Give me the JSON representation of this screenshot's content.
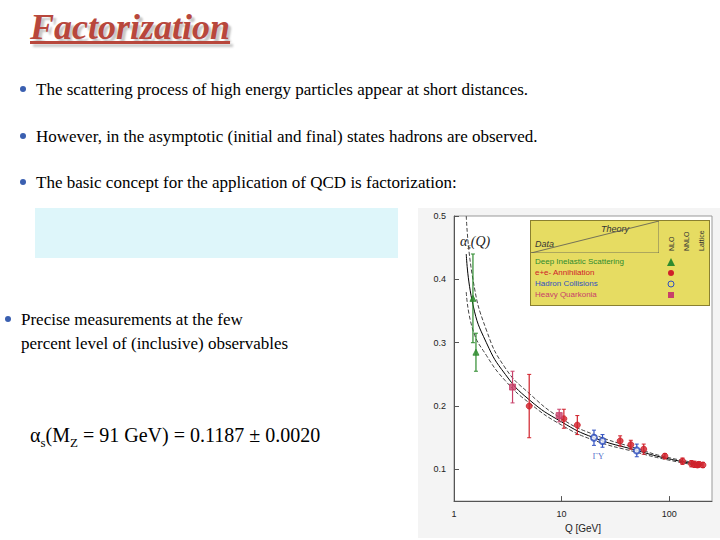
{
  "title": "Factorization",
  "bullets": [
    "The scattering process of high energy particles appear at short distances.",
    "However, in the asymptotic (initial and final) states hadrons are observed.",
    "The basic concept for the application of QCD is factorization:"
  ],
  "bullet_lower": [
    "Precise measurements at the few",
    "percent level of (inclusive) observables"
  ],
  "formula": [
    {
      "text": "α"
    },
    {
      "text": "s",
      "sub": true
    },
    {
      "text": "(M"
    },
    {
      "text": "Z",
      "sub": true
    },
    {
      "text": " = 91 GeV) = 0.1187 ± 0.0020"
    }
  ],
  "chart_data": {
    "type": "scatter",
    "ylabel": [
      {
        "text": "α"
      },
      {
        "text": "s",
        "sub": true
      },
      {
        "text": "(Q)"
      }
    ],
    "xlabel": "Q [GeV]",
    "log": "x",
    "xlim": [
      1,
      250
    ],
    "xticks": [
      1,
      10,
      100
    ],
    "ylim": [
      0.05,
      0.5
    ],
    "yticks": [
      0.1,
      0.2,
      0.3,
      0.4,
      0.5
    ],
    "legend_headers": {
      "theory": "Theory",
      "data": "Data"
    },
    "theory_columns": [
      "NLO",
      "NNLO",
      "Lattice"
    ],
    "series": [
      {
        "name": "Deep Inelastic Scattering",
        "color": "#2e8b2e",
        "marker": "triangle",
        "x": [
          1.5,
          1.6
        ],
        "values": [
          0.37,
          0.285
        ],
        "errors": [
          0.07,
          0.03
        ]
      },
      {
        "name": "e+e- Annihilation",
        "color": "#d0202a",
        "marker": "circle",
        "x": [
          5,
          10.5,
          14,
          35,
          44,
          58,
          91.2,
          133,
          161,
          172,
          183,
          189,
          206
        ],
        "values": [
          0.2,
          0.18,
          0.17,
          0.145,
          0.139,
          0.132,
          0.121,
          0.113,
          0.109,
          0.108,
          0.107,
          0.108,
          0.107
        ],
        "errors": [
          0.05,
          0.015,
          0.015,
          0.008,
          0.007,
          0.008,
          0.004,
          0.005,
          0.005,
          0.005,
          0.004,
          0.004,
          0.004
        ]
      },
      {
        "name": "Hadron Collisions",
        "color": "#3050c0",
        "marker": "emptyCircle",
        "x": [
          20,
          24,
          50
        ],
        "values": [
          0.15,
          0.145,
          0.13
        ],
        "errors": [
          0.012,
          0.01,
          0.01
        ]
      },
      {
        "name": "Heavy Quarkonia",
        "color": "#c8406a",
        "marker": "rect",
        "x": [
          3.5,
          9.5
        ],
        "values": [
          0.23,
          0.185
        ],
        "errors": [
          0.025,
          0.01
        ]
      },
      {
        "type": "line",
        "color": "#000000",
        "line_style": "solid",
        "x": [
          1.3,
          1.5,
          2,
          3,
          5,
          10,
          20,
          50,
          91.2,
          200
        ],
        "values": [
          0.44,
          0.36,
          0.3,
          0.25,
          0.21,
          0.175,
          0.15,
          0.13,
          0.118,
          0.107
        ]
      },
      {
        "type": "line",
        "color": "#444444",
        "line_style": "dashed",
        "x": [
          1.3,
          1.5,
          2,
          3,
          5,
          10,
          20,
          50,
          91.2,
          200
        ],
        "values": [
          0.5,
          0.4,
          0.32,
          0.26,
          0.22,
          0.18,
          0.155,
          0.133,
          0.12,
          0.109
        ]
      },
      {
        "type": "line",
        "color": "#444444",
        "line_style": "dashed",
        "x": [
          1.3,
          1.5,
          2,
          3,
          5,
          10,
          20,
          50,
          91.2,
          200
        ],
        "values": [
          0.38,
          0.32,
          0.28,
          0.24,
          0.205,
          0.17,
          0.146,
          0.127,
          0.116,
          0.105
        ]
      }
    ],
    "annotations": [
      {
        "text": "ΓΥ",
        "x": 22,
        "y": 0.128,
        "color": "#3050c0"
      }
    ]
  }
}
